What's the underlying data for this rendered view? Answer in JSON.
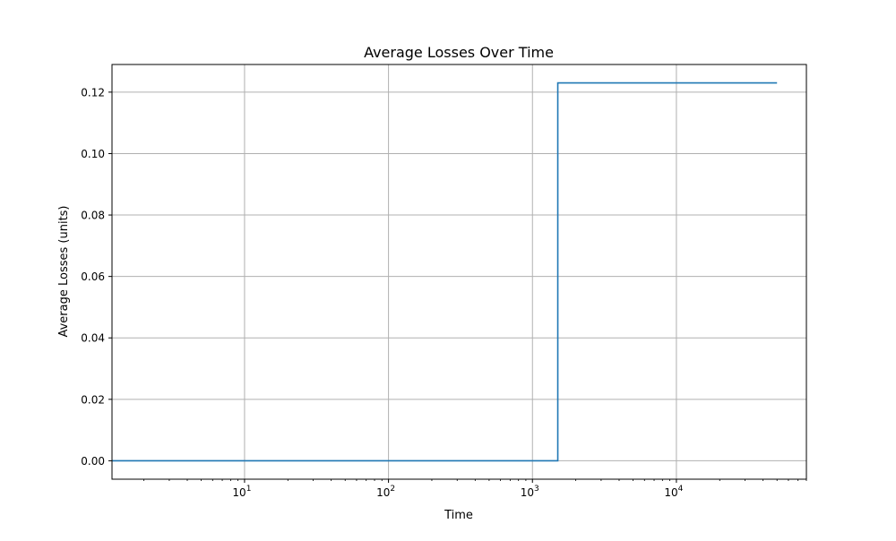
{
  "chart_data": {
    "type": "line",
    "title": "Average Losses Over Time",
    "xlabel": "Time",
    "ylabel": "Average Losses (units)",
    "x_scale": "log",
    "xlim": [
      1.2,
      80000
    ],
    "ylim": [
      -0.006,
      0.129
    ],
    "x_ticks": [
      {
        "value": 10,
        "mantissa": "10",
        "exponent": "1"
      },
      {
        "value": 100,
        "mantissa": "10",
        "exponent": "2"
      },
      {
        "value": 1000,
        "mantissa": "10",
        "exponent": "3"
      },
      {
        "value": 10000,
        "mantissa": "10",
        "exponent": "4"
      }
    ],
    "y_ticks": [
      {
        "value": 0.0,
        "label": "0.00"
      },
      {
        "value": 0.02,
        "label": "0.02"
      },
      {
        "value": 0.04,
        "label": "0.04"
      },
      {
        "value": 0.06,
        "label": "0.06"
      },
      {
        "value": 0.08,
        "label": "0.08"
      },
      {
        "value": 0.1,
        "label": "0.10"
      },
      {
        "value": 0.12,
        "label": "0.12"
      }
    ],
    "grid": true,
    "series": [
      {
        "color": "#1f77b4",
        "step": "post",
        "x": [
          1.2,
          1500,
          1500,
          50000
        ],
        "y": [
          0.0,
          0.0,
          0.123,
          0.123
        ]
      }
    ]
  }
}
